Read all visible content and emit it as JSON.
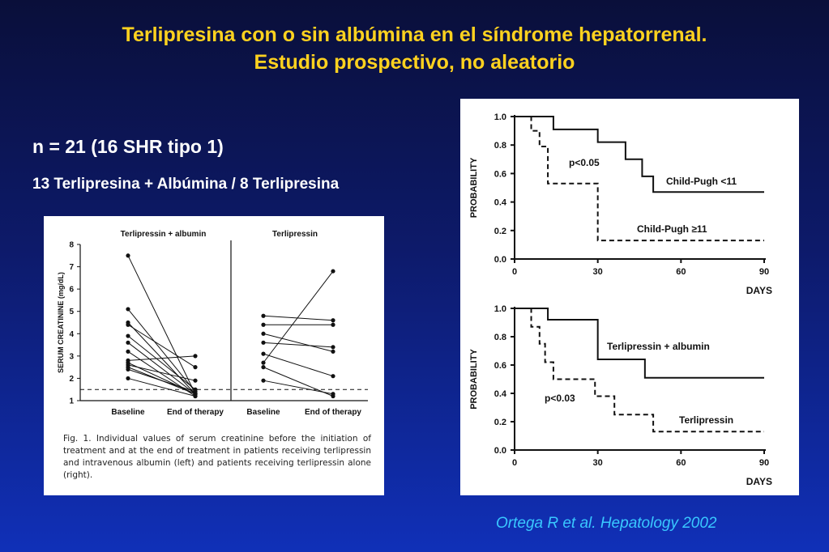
{
  "slide": {
    "title_line1": "Terlipresina con o sin albúmina en el síndrome hepatorrenal.",
    "title_line2": "Estudio prospectivo, no aleatorio",
    "n_line": "n = 21 (16 SHR tipo 1)",
    "groups_line": "13 Terlipresina + Albúmina / 8 Terlipresina",
    "citation": "Ortega R et al. Hepatology 2002"
  },
  "figure1": {
    "caption": "Fig. 1.  Individual values of serum creatinine before the initiation of treatment and at the end of treatment in patients receiving terlipressin and intravenous albumin (left) and patients receiving terlipressin alone (right)."
  },
  "chart_data": [
    {
      "type": "line",
      "subtype": "paired-dot",
      "ylabel": "SERUM CREATININE (mg/dL)",
      "ylim": [
        1,
        8
      ],
      "yticks": [
        1,
        2,
        3,
        4,
        5,
        6,
        7,
        8
      ],
      "reference_line": 1.5,
      "categories": [
        "Baseline",
        "End of therapy"
      ],
      "panels": [
        {
          "title": "Terlipressin + albumin",
          "pairs": [
            [
              7.5,
              1.3
            ],
            [
              5.1,
              1.4
            ],
            [
              4.5,
              1.3
            ],
            [
              4.4,
              2.5
            ],
            [
              3.9,
              1.5
            ],
            [
              3.6,
              1.3
            ],
            [
              3.2,
              1.2
            ],
            [
              2.8,
              3.0
            ],
            [
              2.7,
              1.3
            ],
            [
              2.6,
              1.9
            ],
            [
              2.5,
              1.3
            ],
            [
              2.4,
              1.4
            ],
            [
              2.0,
              1.2
            ]
          ]
        },
        {
          "title": "Terlipressin",
          "pairs": [
            [
              4.8,
              4.6
            ],
            [
              4.4,
              4.4
            ],
            [
              4.0,
              3.2
            ],
            [
              3.6,
              3.4
            ],
            [
              3.1,
              2.1
            ],
            [
              2.7,
              6.8
            ],
            [
              2.5,
              1.2
            ],
            [
              1.9,
              1.3
            ]
          ]
        }
      ]
    },
    {
      "type": "line",
      "subtype": "step",
      "xlabel": "DAYS",
      "ylabel": "PROBABILITY",
      "xlim": [
        0,
        90
      ],
      "ylim": [
        0,
        1
      ],
      "xticks": [
        0,
        30,
        60,
        90
      ],
      "yticks": [
        0,
        0.2,
        0.4,
        0.6,
        0.8,
        1.0
      ],
      "annotation": "p<0.05",
      "series": [
        {
          "name": "Child-Pugh <11",
          "style": "solid",
          "x": [
            0,
            14,
            14,
            30,
            30,
            40,
            40,
            46,
            46,
            50,
            50,
            90
          ],
          "y": [
            1.0,
            1.0,
            0.91,
            0.91,
            0.82,
            0.82,
            0.7,
            0.7,
            0.58,
            0.58,
            0.47,
            0.47
          ]
        },
        {
          "name": "Child-Pugh ≥11",
          "style": "dashed",
          "x": [
            0,
            6,
            6,
            9,
            9,
            12,
            12,
            30,
            30,
            90
          ],
          "y": [
            1.0,
            1.0,
            0.9,
            0.9,
            0.79,
            0.79,
            0.53,
            0.53,
            0.13,
            0.13
          ]
        }
      ]
    },
    {
      "type": "line",
      "subtype": "step",
      "xlabel": "DAYS",
      "ylabel": "PROBABILITY",
      "xlim": [
        0,
        90
      ],
      "ylim": [
        0,
        1
      ],
      "xticks": [
        0,
        30,
        60,
        90
      ],
      "yticks": [
        0,
        0.2,
        0.4,
        0.6,
        0.8,
        1.0
      ],
      "annotation": "p<0.03",
      "series": [
        {
          "name": "Terlipressin + albumin",
          "style": "solid",
          "x": [
            0,
            12,
            12,
            30,
            30,
            47,
            47,
            90
          ],
          "y": [
            1.0,
            1.0,
            0.92,
            0.92,
            0.64,
            0.64,
            0.51,
            0.51
          ]
        },
        {
          "name": "Terlipressin",
          "style": "dashed",
          "x": [
            0,
            6,
            6,
            9,
            9,
            11,
            11,
            14,
            14,
            29,
            29,
            36,
            36,
            40,
            40,
            50,
            50,
            90
          ],
          "y": [
            1.0,
            1.0,
            0.87,
            0.87,
            0.75,
            0.75,
            0.62,
            0.62,
            0.5,
            0.5,
            0.38,
            0.38,
            0.25,
            0.25,
            0.25,
            0.25,
            0.13,
            0.13
          ]
        }
      ]
    }
  ]
}
